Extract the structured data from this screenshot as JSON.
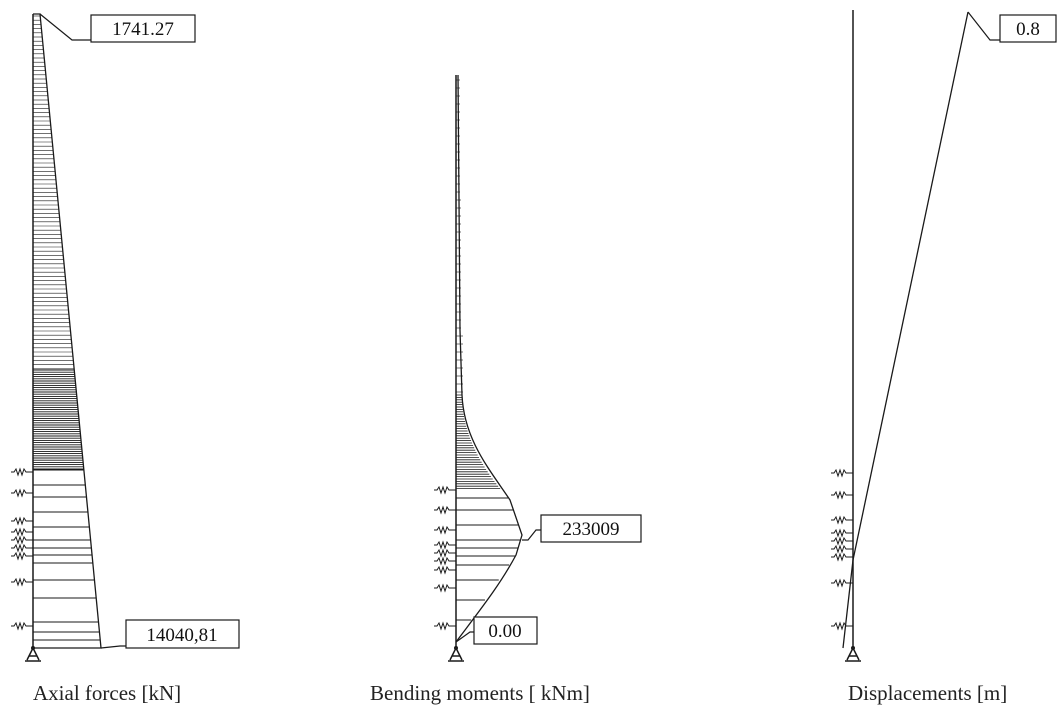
{
  "panels": [
    {
      "id": "axial",
      "caption": "Axial forces [kN]",
      "callouts": [
        {
          "name": "axial-top-value",
          "text": "1741.27"
        },
        {
          "name": "axial-base-value",
          "text": "14040,81"
        }
      ]
    },
    {
      "id": "moment",
      "caption": "Bending moments [ kNm]",
      "callouts": [
        {
          "name": "moment-peak-value",
          "text": "233009"
        },
        {
          "name": "moment-base-value",
          "text": "0.00"
        }
      ]
    },
    {
      "id": "displacement",
      "caption": "Displacements [m]",
      "callouts": [
        {
          "name": "displacement-top-value",
          "text": "0.8"
        }
      ]
    }
  ],
  "colors": {
    "line": "#1a1a1a",
    "background": "#ffffff"
  }
}
